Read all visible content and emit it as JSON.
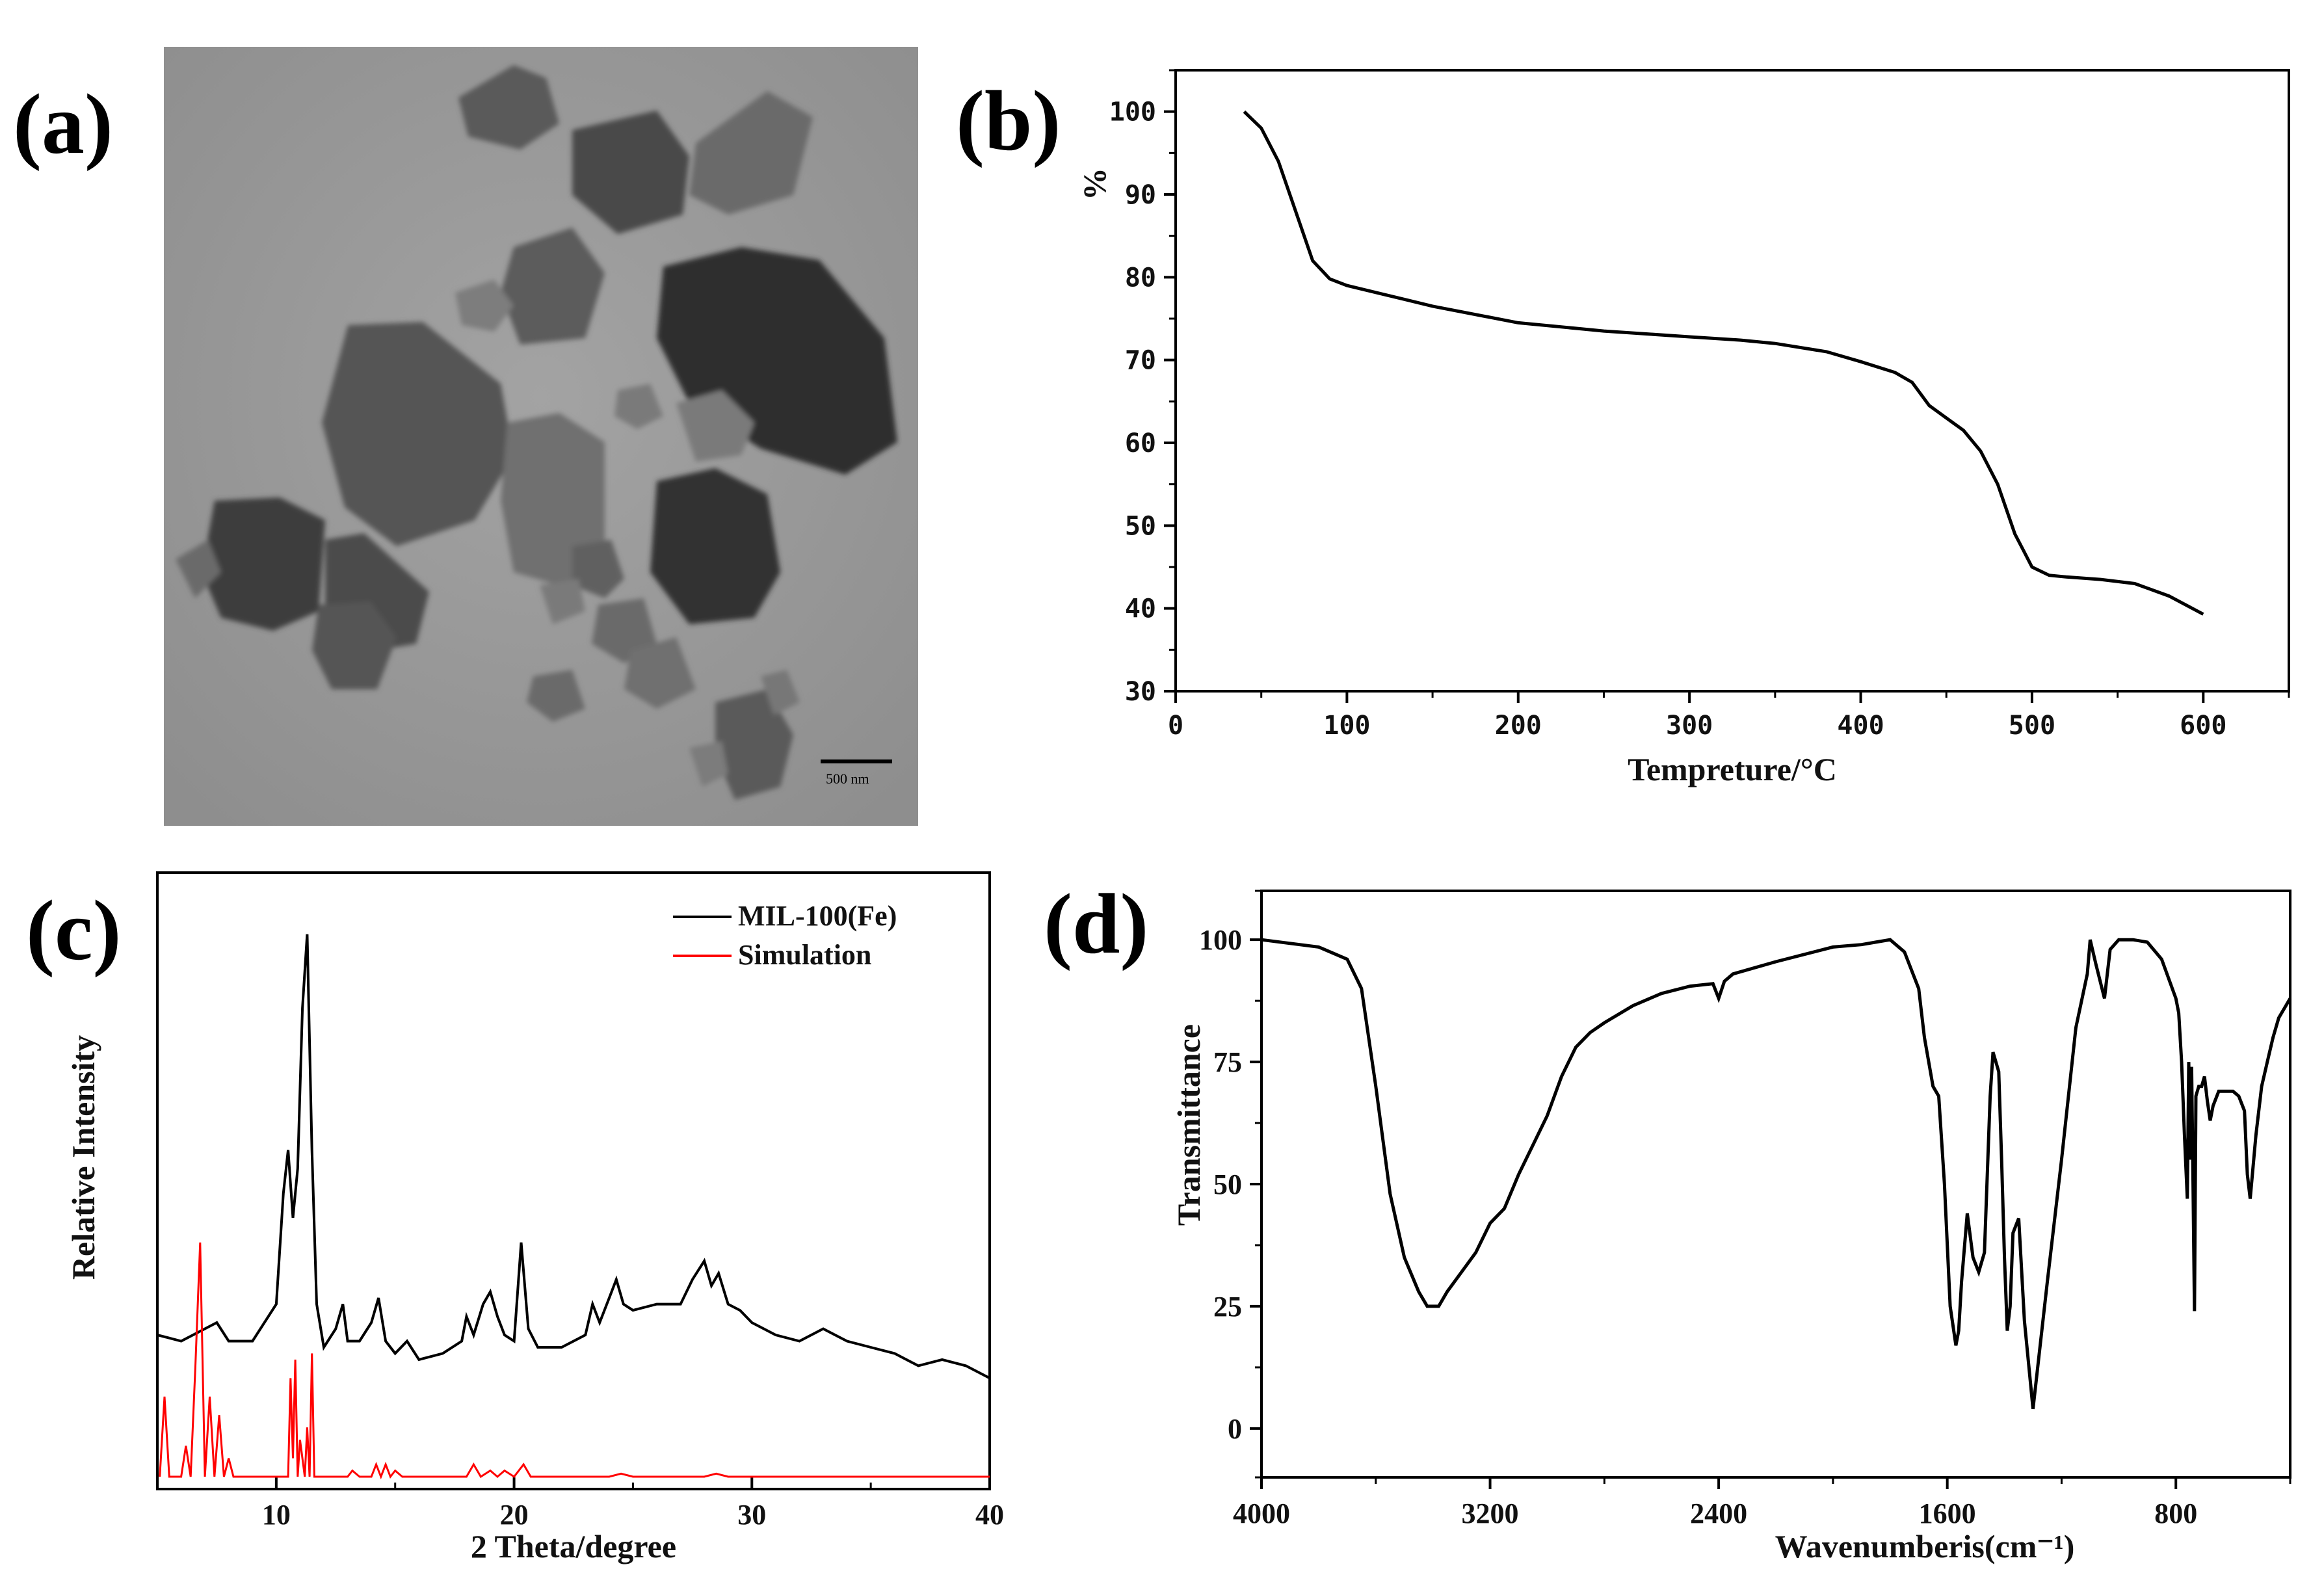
{
  "panels": {
    "a": {
      "label": "(a)",
      "scale_bar_text": "500 nm"
    },
    "b": {
      "label": "(b)"
    },
    "c": {
      "label": "(c)"
    },
    "d": {
      "label": "(d)"
    }
  },
  "chart_data": [
    {
      "id": "b",
      "type": "line",
      "title": "",
      "xlabel": "Tempreture/°C",
      "ylabel": "%",
      "xlim": [
        0,
        650
      ],
      "ylim": [
        30,
        105
      ],
      "xticks": [
        0,
        100,
        200,
        300,
        400,
        500,
        600
      ],
      "yticks": [
        30,
        40,
        50,
        60,
        70,
        80,
        90,
        100
      ],
      "grid": false,
      "series": [
        {
          "color": "#000000",
          "x": [
            40,
            50,
            60,
            70,
            80,
            90,
            100,
            120,
            150,
            200,
            250,
            300,
            330,
            350,
            380,
            400,
            420,
            430,
            440,
            450,
            460,
            470,
            480,
            490,
            495,
            500,
            510,
            520,
            540,
            560,
            580,
            600
          ],
          "y": [
            100,
            98,
            94,
            88,
            82,
            79.8,
            79,
            78,
            76.5,
            74.5,
            73.5,
            72.8,
            72.4,
            72,
            71,
            69.8,
            68.5,
            67.3,
            64.5,
            63,
            61.5,
            59,
            55,
            49,
            47,
            45,
            44,
            43.8,
            43.5,
            43,
            41.5,
            39.3
          ]
        }
      ]
    },
    {
      "id": "c",
      "type": "line",
      "title": "",
      "xlabel": "2 Theta/degree",
      "ylabel": "Relative Intensity",
      "xlim": [
        5,
        40
      ],
      "xticks": [
        10,
        20,
        30,
        40
      ],
      "yticks": [],
      "grid": false,
      "legend_position": "top-right",
      "series": [
        {
          "name": "MIL-100(Fe)",
          "color": "#000000",
          "x": [
            5,
            6,
            7,
            7.5,
            8,
            9,
            10,
            10.3,
            10.5,
            10.7,
            10.9,
            11.1,
            11.3,
            11.5,
            11.7,
            12,
            12.5,
            12.8,
            13,
            13.5,
            14,
            14.3,
            14.6,
            15,
            15.5,
            16,
            17,
            17.8,
            18,
            18.3,
            18.7,
            19,
            19.3,
            19.6,
            20,
            20.3,
            20.6,
            21,
            22,
            23,
            23.3,
            23.6,
            24,
            24.3,
            24.6,
            25,
            26,
            27,
            27.5,
            28,
            28.3,
            28.6,
            29,
            29.5,
            30,
            31,
            32,
            33,
            34,
            35,
            36,
            37,
            38,
            39,
            40
          ],
          "y": [
            0.25,
            0.24,
            0.26,
            0.27,
            0.24,
            0.24,
            0.3,
            0.48,
            0.55,
            0.44,
            0.52,
            0.78,
            0.9,
            0.55,
            0.3,
            0.23,
            0.26,
            0.3,
            0.24,
            0.24,
            0.27,
            0.31,
            0.24,
            0.22,
            0.24,
            0.21,
            0.22,
            0.24,
            0.28,
            0.25,
            0.3,
            0.32,
            0.28,
            0.25,
            0.24,
            0.4,
            0.26,
            0.23,
            0.23,
            0.25,
            0.3,
            0.27,
            0.31,
            0.34,
            0.3,
            0.29,
            0.3,
            0.3,
            0.34,
            0.37,
            0.33,
            0.35,
            0.3,
            0.29,
            0.27,
            0.25,
            0.24,
            0.26,
            0.24,
            0.23,
            0.22,
            0.2,
            0.21,
            0.2,
            0.18
          ]
        },
        {
          "name": "Simulation",
          "color": "#ff0000",
          "x": [
            5.1,
            5.3,
            5.5,
            6,
            6.2,
            6.4,
            6.6,
            6.8,
            7.0,
            7.2,
            7.4,
            7.6,
            7.8,
            8,
            8.2,
            8.5,
            9,
            10,
            10.5,
            10.6,
            10.7,
            10.8,
            10.9,
            11,
            11.2,
            11.3,
            11.4,
            11.5,
            11.6,
            11.8,
            12,
            12.5,
            13,
            13.2,
            13.5,
            14,
            14.2,
            14.4,
            14.6,
            14.8,
            15,
            15.3,
            15.6,
            16,
            17,
            18,
            18.3,
            18.6,
            19,
            19.3,
            19.6,
            20,
            20.4,
            20.7,
            21,
            22,
            24,
            24.5,
            25,
            27,
            28,
            28.5,
            29,
            30,
            33,
            35,
            40
          ],
          "y": [
            0.02,
            0.15,
            0.02,
            0.02,
            0.07,
            0.02,
            0.2,
            0.4,
            0.02,
            0.15,
            0.02,
            0.12,
            0.02,
            0.05,
            0.02,
            0.02,
            0.02,
            0.02,
            0.02,
            0.18,
            0.05,
            0.21,
            0.02,
            0.08,
            0.02,
            0.1,
            0.02,
            0.22,
            0.02,
            0.02,
            0.02,
            0.02,
            0.02,
            0.03,
            0.02,
            0.02,
            0.04,
            0.02,
            0.04,
            0.02,
            0.03,
            0.02,
            0.02,
            0.02,
            0.02,
            0.02,
            0.04,
            0.02,
            0.03,
            0.02,
            0.03,
            0.02,
            0.04,
            0.02,
            0.02,
            0.02,
            0.02,
            0.025,
            0.02,
            0.02,
            0.02,
            0.025,
            0.02,
            0.02,
            0.02,
            0.02,
            0.02
          ]
        }
      ]
    },
    {
      "id": "d",
      "type": "line",
      "title": "",
      "xlabel": "Wavenumberis(cm⁻¹)",
      "ylabel": "Transmittance",
      "xlim": [
        4000,
        400
      ],
      "ylim": [
        -10,
        110
      ],
      "xticks": [
        4000,
        3200,
        2400,
        1600,
        800
      ],
      "yticks": [
        0,
        25,
        50,
        75,
        100
      ],
      "grid": false,
      "series": [
        {
          "color": "#000000",
          "x": [
            4000,
            3800,
            3700,
            3650,
            3600,
            3550,
            3500,
            3450,
            3420,
            3380,
            3350,
            3300,
            3250,
            3200,
            3150,
            3100,
            3050,
            3000,
            2950,
            2900,
            2850,
            2800,
            2700,
            2600,
            2500,
            2420,
            2400,
            2380,
            2350,
            2200,
            2000,
            1900,
            1850,
            1800,
            1750,
            1700,
            1680,
            1650,
            1630,
            1610,
            1590,
            1570,
            1560,
            1550,
            1530,
            1510,
            1490,
            1470,
            1450,
            1440,
            1420,
            1410,
            1400,
            1390,
            1380,
            1370,
            1350,
            1330,
            1300,
            1250,
            1200,
            1150,
            1110,
            1100,
            1080,
            1050,
            1030,
            1000,
            950,
            900,
            850,
            800,
            790,
            780,
            770,
            760,
            755,
            750,
            745,
            740,
            735,
            730,
            720,
            710,
            700,
            690,
            680,
            670,
            650,
            600,
            580,
            560,
            550,
            540,
            520,
            500,
            480,
            460,
            440,
            420,
            400
          ],
          "y": [
            100,
            98.5,
            96,
            90,
            70,
            48,
            35,
            28,
            25,
            25,
            28,
            32,
            36,
            42,
            45,
            52,
            58,
            64,
            72,
            78,
            81,
            83,
            86.5,
            89,
            90.5,
            91,
            88,
            91.5,
            93,
            95.5,
            98.5,
            99,
            99.5,
            100,
            97.5,
            90,
            80,
            70,
            68,
            50,
            25,
            17,
            20,
            30,
            44,
            35,
            32,
            36,
            68,
            77,
            73,
            55,
            35,
            20,
            25,
            40,
            43,
            22,
            4,
            30,
            55,
            82,
            93,
            100,
            95,
            88,
            98,
            100,
            100,
            99.5,
            96,
            88,
            85,
            75,
            60,
            47,
            75,
            55,
            74,
            50,
            24,
            68,
            70,
            70,
            72,
            67,
            63,
            66,
            69,
            69,
            68,
            65,
            52,
            47,
            60,
            70,
            75,
            80,
            84,
            86,
            88
          ]
        }
      ]
    }
  ]
}
